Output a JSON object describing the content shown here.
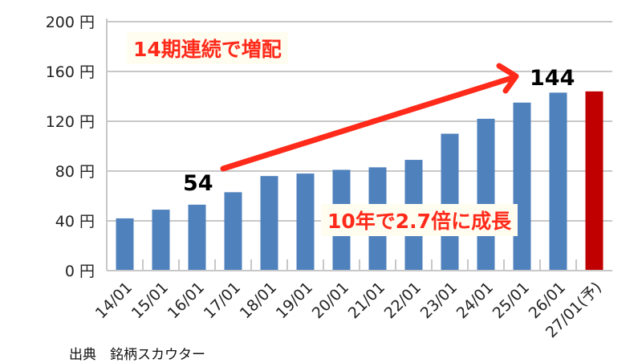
{
  "chart_data": {
    "type": "bar",
    "title": "",
    "xlabel": "",
    "ylabel": "",
    "ylim": [
      0,
      200
    ],
    "yticks": [
      0,
      40,
      80,
      120,
      160,
      200
    ],
    "ytick_suffix": " 円",
    "grid": true,
    "categories": [
      "14/01",
      "15/01",
      "16/01",
      "17/01",
      "18/01",
      "19/01",
      "20/01",
      "21/01",
      "22/01",
      "23/01",
      "24/01",
      "25/01",
      "26/01",
      "27/01(予)"
    ],
    "values": [
      42,
      49,
      53,
      63,
      76,
      78,
      81,
      83,
      89,
      110,
      122,
      135,
      143,
      144
    ],
    "bar_colors": {
      "actual": "#4f81bd",
      "forecast": "#c00000"
    },
    "data_labels": {
      "start": "54",
      "end": "144"
    },
    "annotations": {
      "streak": "14期連続で増配",
      "growth": "10年で2.7倍に成長"
    },
    "arrow_color": "#ff2a1a"
  },
  "source": "出典　銘柄スカウター"
}
